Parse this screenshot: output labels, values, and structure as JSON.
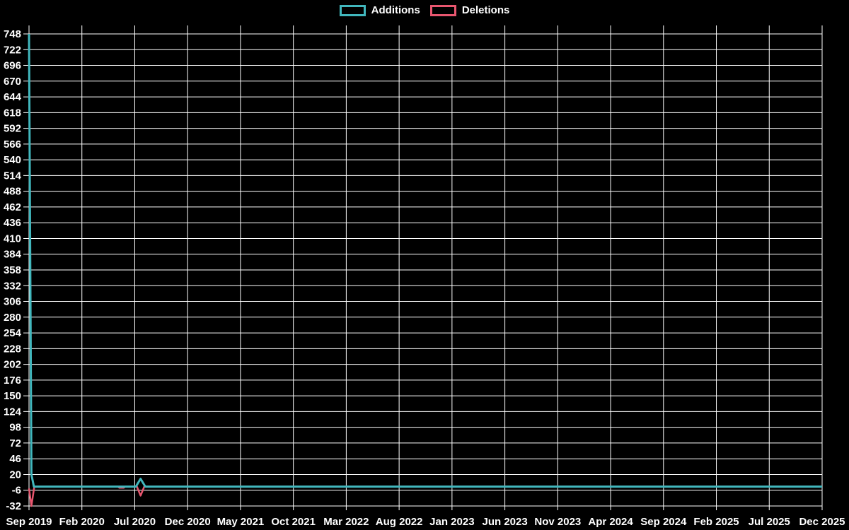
{
  "chart_data": {
    "type": "line",
    "title": "",
    "background_color": "#000000",
    "grid_color": "#ffffff",
    "text_color": "#ffffff",
    "legend": {
      "position": "top-center",
      "items": [
        "Additions",
        "Deletions"
      ]
    },
    "x_axis": {
      "start": "Sep 2019",
      "end": "Dec 2025",
      "unit": "month offset from Sep 2019",
      "tick_interval_months": 5,
      "grid": true
    },
    "x_labels": [
      "Sep 2019",
      "Feb 2020",
      "Jul 2020",
      "Dec 2020",
      "May 2021",
      "Oct 2021",
      "Mar 2022",
      "Aug 2022",
      "Jan 2023",
      "Jun 2023",
      "Nov 2023",
      "Apr 2024",
      "Sep 2024",
      "Feb 2025",
      "Jul 2025",
      "Dec 2025"
    ],
    "y_ticks": [
      748,
      722,
      696,
      670,
      644,
      618,
      592,
      566,
      540,
      514,
      488,
      462,
      436,
      410,
      384,
      358,
      332,
      306,
      280,
      254,
      228,
      202,
      176,
      150,
      124,
      98,
      72,
      46,
      20,
      -6,
      -32
    ],
    "ylim": [
      -39,
      762
    ],
    "grid": true,
    "series": [
      {
        "name": "Additions",
        "color": "#41b7bd",
        "stroke_width": 3,
        "points": [
          [
            0,
            748
          ],
          [
            0.23,
            20
          ],
          [
            0.46,
            0
          ],
          [
            10.1,
            0
          ],
          [
            10.55,
            13
          ],
          [
            11,
            0
          ],
          [
            75,
            0
          ]
        ]
      },
      {
        "name": "Deletions",
        "color": "#e8566f",
        "stroke_width": 2.5,
        "points": [
          [
            0,
            -3
          ],
          [
            0.23,
            -32
          ],
          [
            0.5,
            0
          ],
          [
            8.4,
            0
          ],
          [
            8.55,
            -2
          ],
          [
            8.95,
            -2
          ],
          [
            9.1,
            0
          ],
          [
            10.2,
            0
          ],
          [
            10.55,
            -15
          ],
          [
            10.9,
            0
          ],
          [
            75,
            0
          ]
        ]
      }
    ]
  }
}
